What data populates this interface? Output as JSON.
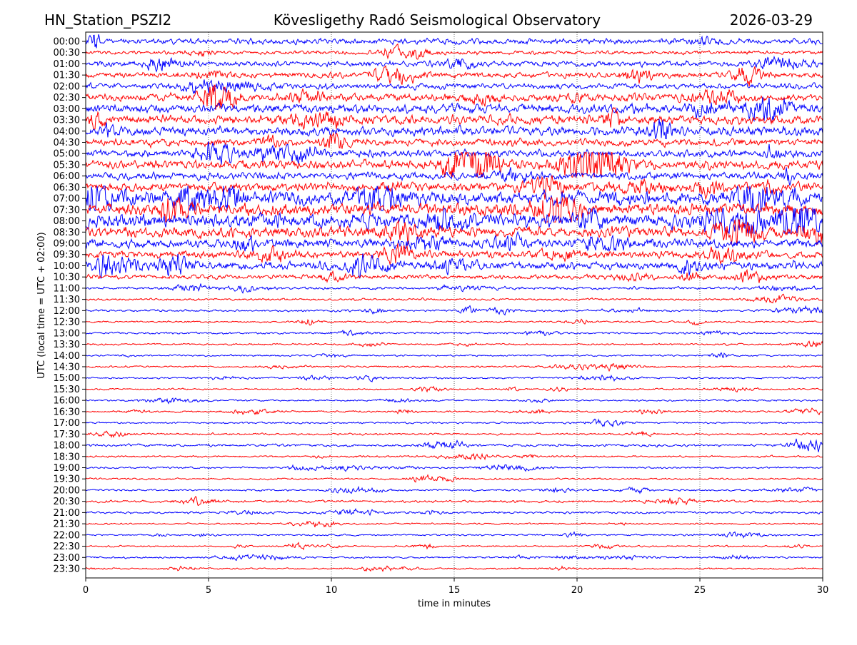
{
  "chart_data": {
    "type": "line",
    "title_left": "HN_Station_PSZI2",
    "title": "Kövesligethy Radó Seismological Observatory",
    "title_right": "2026-03-29",
    "xlabel": "time in minutes",
    "ylabel": "UTC (local time = UTC + 02:00)",
    "xlim": [
      0,
      30
    ],
    "xticks": [
      0,
      5,
      10,
      15,
      20,
      25,
      30
    ],
    "grid": "vertical dotted at x ticks",
    "series_colors": [
      "#0000ff",
      "#ff0000"
    ],
    "rows": [
      "00:00",
      "00:30",
      "01:00",
      "01:30",
      "02:00",
      "02:30",
      "03:00",
      "03:30",
      "04:00",
      "04:30",
      "05:00",
      "05:30",
      "06:00",
      "06:30",
      "07:00",
      "07:30",
      "08:00",
      "08:30",
      "09:00",
      "09:30",
      "10:00",
      "10:30",
      "11:00",
      "11:30",
      "12:00",
      "12:30",
      "13:00",
      "13:30",
      "14:00",
      "14:30",
      "15:00",
      "15:30",
      "16:00",
      "16:30",
      "17:00",
      "17:30",
      "18:00",
      "18:30",
      "19:00",
      "19:30",
      "20:00",
      "20:30",
      "21:00",
      "21:30",
      "22:00",
      "22:30",
      "23:00",
      "23:30"
    ],
    "relative_amplitude": [
      3,
      2,
      3,
      3,
      3,
      4,
      5,
      5,
      5,
      4,
      4,
      5,
      4,
      5,
      8,
      7,
      8,
      6,
      5,
      4,
      4.5,
      2.5,
      1.5,
      1.2,
      1.2,
      1,
      1.1,
      1,
      1,
      1,
      1,
      0.9,
      1,
      1,
      1,
      1.1,
      1.4,
      1.1,
      1,
      1,
      1,
      1.3,
      1.2,
      0.9,
      0.9,
      0.9,
      1,
      0.9
    ]
  }
}
